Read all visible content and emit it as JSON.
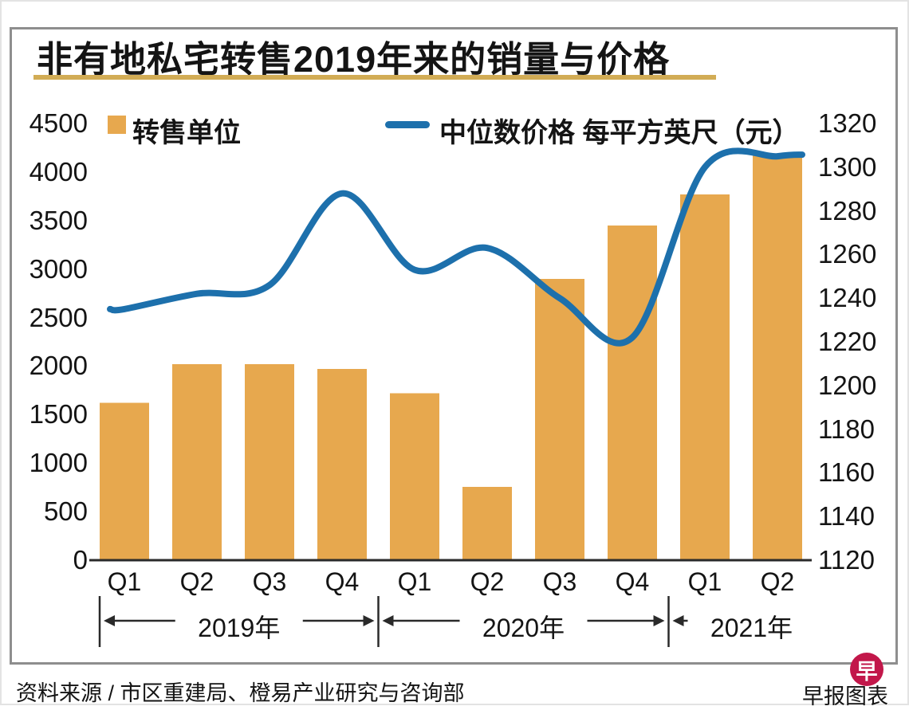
{
  "title": "非有地私宅转售2019年来的销量与价格",
  "legend": {
    "bar_label": "转售单位",
    "line_label": "中位数价格 每平方英尺（元）"
  },
  "footer": {
    "source": "资料来源 / 市区重建局、橙易产业研究与咨询部",
    "credit": "早报图表",
    "logo_glyph": "早"
  },
  "colors": {
    "bar": "#E7A84E",
    "line": "#1D70AC",
    "title_rule": "#D2AC55",
    "logo": "#C2174A",
    "axis_line": "#2a2a2a",
    "box_border": "#8e8e8e",
    "text": "#141414"
  },
  "chart_data": {
    "type": "combo-bar-line",
    "title": "非有地私宅转售2019年来的销量与价格",
    "categories": [
      "Q1",
      "Q2",
      "Q3",
      "Q4",
      "Q1",
      "Q2",
      "Q3",
      "Q4",
      "Q1",
      "Q2"
    ],
    "year_groups": [
      {
        "label": "2019年",
        "from": 0,
        "to": 3
      },
      {
        "label": "2020年",
        "from": 4,
        "to": 7
      },
      {
        "label": "2021年",
        "from": 8,
        "to": 9
      }
    ],
    "series": [
      {
        "name": "转售单位",
        "type": "bar",
        "axis": "left",
        "values": [
          1620,
          2020,
          2020,
          1970,
          1720,
          755,
          2900,
          3450,
          3770,
          4190
        ]
      },
      {
        "name": "中位数价格 每平方英尺（元）",
        "type": "line",
        "axis": "right",
        "values": [
          1235,
          1242,
          1246,
          1288,
          1253,
          1263,
          1240,
          1222,
          1300,
          1305
        ]
      }
    ],
    "left_axis": {
      "min": 0,
      "max": 4500,
      "step": 500,
      "ticks": [
        4500,
        4000,
        3500,
        3000,
        2500,
        2000,
        1500,
        1000,
        500,
        0
      ]
    },
    "right_axis": {
      "min": 1120,
      "max": 1320,
      "step": 20,
      "ticks": [
        1320,
        1300,
        1280,
        1260,
        1240,
        1220,
        1200,
        1180,
        1160,
        1140,
        1120
      ]
    },
    "legend_position": "top",
    "grid": false
  }
}
